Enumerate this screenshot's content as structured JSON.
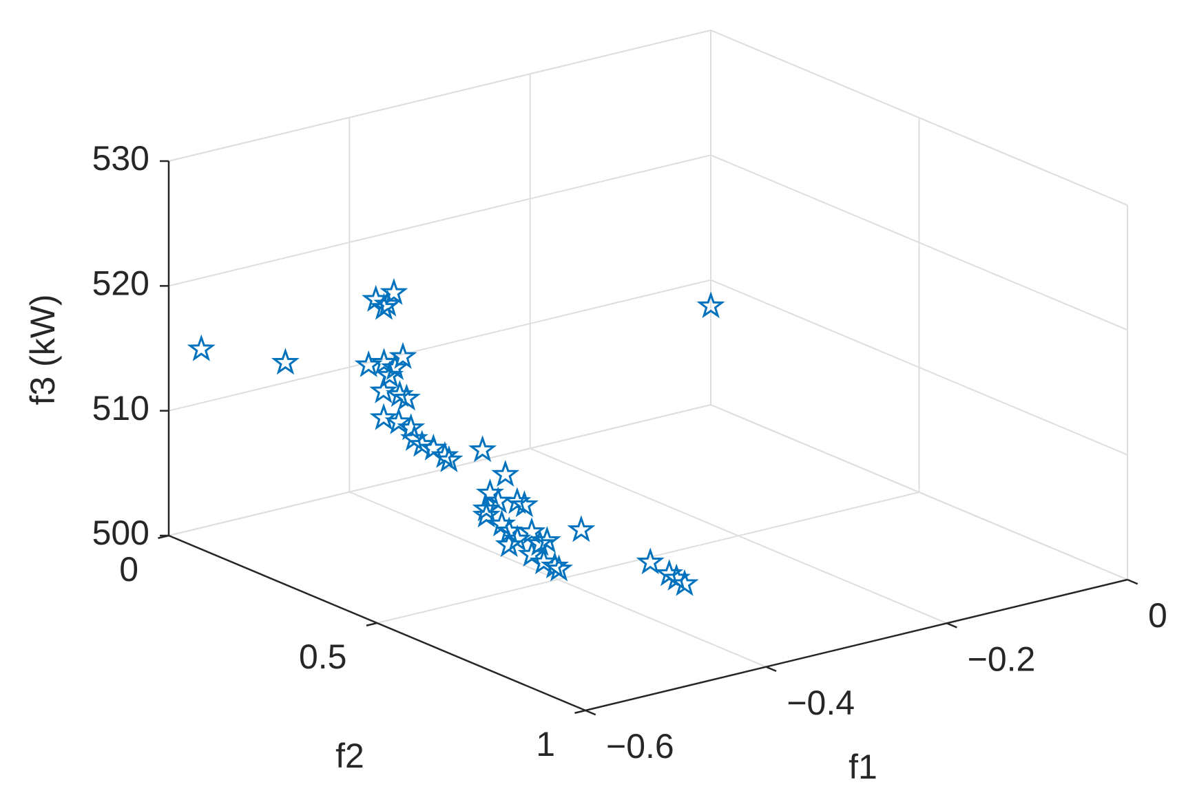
{
  "chart_data": {
    "type": "scatter3d",
    "xlabel": "f1",
    "ylabel": "f2",
    "zlabel": "f3 (kW)",
    "xlim": [
      -0.6,
      0
    ],
    "ylim": [
      0,
      1
    ],
    "zlim": [
      500,
      530
    ],
    "xticks": [
      {
        "value": -0.6,
        "label": "−0.6"
      },
      {
        "value": -0.4,
        "label": "−0.4"
      },
      {
        "value": -0.2,
        "label": "−0.2"
      },
      0
    ],
    "yticks": [
      0,
      0.5,
      1
    ],
    "zticks": [
      500,
      510,
      520,
      530
    ],
    "grid": true,
    "marker": "pentagram",
    "series": [
      {
        "color": "#0072BD",
        "x": [
          -0.587,
          -0.517,
          -0.023,
          -0.463,
          -0.443,
          -0.45,
          -0.454,
          -0.471,
          -0.454,
          -0.433,
          -0.451,
          -0.457,
          -0.473,
          -0.455,
          -0.452,
          -0.482,
          -0.47,
          -0.461,
          -0.462,
          -0.458,
          -0.45,
          -0.442,
          -0.442,
          -0.391,
          -0.475,
          -0.458,
          -0.479,
          -0.466,
          -0.468,
          -0.46,
          -0.479,
          -0.485,
          -0.5,
          -0.514,
          -0.475,
          -0.489,
          -0.481,
          -0.521,
          -0.517,
          -0.514,
          -0.514,
          -0.374,
          -0.523,
          -0.459,
          -0.438,
          -0.43,
          -0.421
        ],
        "y": [
          0.05,
          0.1,
          0.05,
          0.2,
          0.2,
          0.2,
          0.2,
          0.2,
          0.2,
          0.2,
          0.22,
          0.22,
          0.24,
          0.24,
          0.25,
          0.26,
          0.27,
          0.28,
          0.29,
          0.3,
          0.31,
          0.32,
          0.33,
          0.3,
          0.5,
          0.5,
          0.5,
          0.5,
          0.55,
          0.55,
          0.5,
          0.55,
          0.6,
          0.65,
          0.6,
          0.65,
          0.65,
          0.7,
          0.72,
          0.74,
          0.75,
          0.5,
          0.65,
          0.85,
          0.85,
          0.85,
          0.85
        ],
        "z": [
          515.4,
          513.8,
          509.0,
          519.3,
          519.5,
          518.7,
          518.5,
          514.2,
          514.1,
          514.2,
          513.9,
          513.4,
          512.7,
          512.1,
          511.9,
          511.0,
          510.6,
          510.1,
          509.4,
          509.0,
          508.7,
          508.1,
          507.9,
          507.4,
          508.2,
          509.4,
          507.0,
          507.4,
          508.1,
          507.7,
          506.5,
          506.6,
          507.0,
          507.3,
          506.5,
          506.5,
          506.6,
          506.9,
          506.5,
          506.4,
          506.3,
          503.5,
          507.0,
          507.3,
          506.0,
          505.5,
          504.9
        ]
      }
    ]
  }
}
